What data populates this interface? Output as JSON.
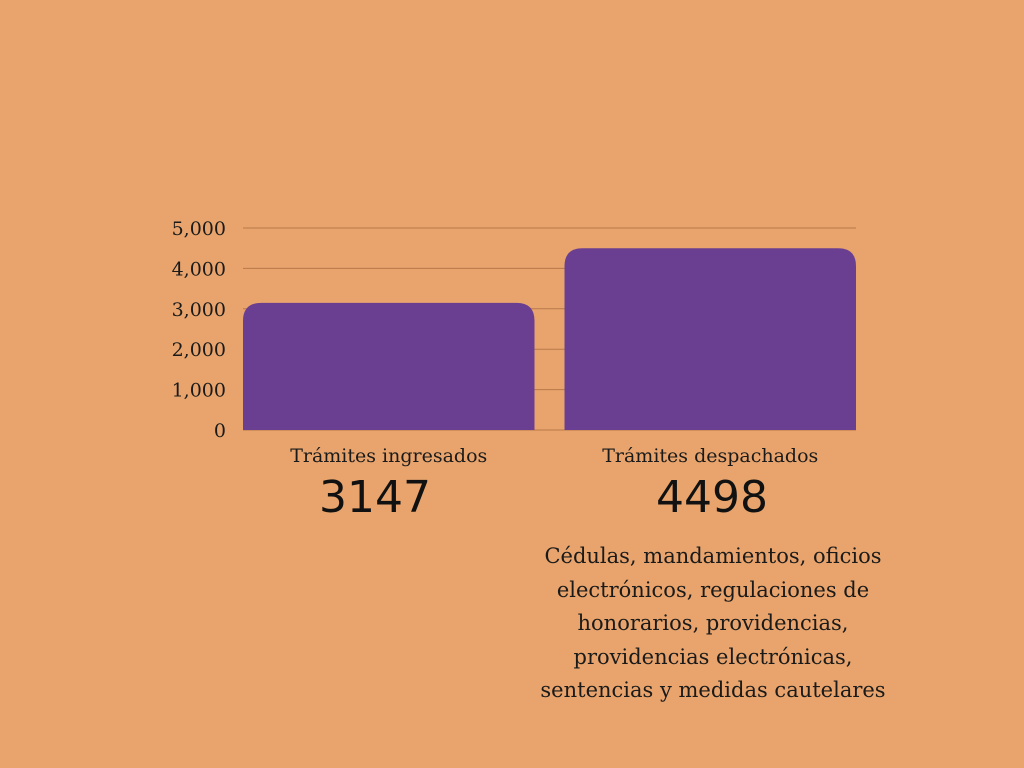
{
  "chart_data": {
    "type": "bar",
    "categories": [
      "Trámites ingresados",
      "Trámites despachados"
    ],
    "values": [
      3147,
      4498
    ],
    "ylim": [
      0,
      5000
    ],
    "yticks": [
      0,
      1000,
      2000,
      3000,
      4000,
      5000
    ],
    "ytick_labels": [
      "0",
      "1,000",
      "2,000",
      "3,000",
      "4,000",
      "5,000"
    ],
    "grid": true,
    "bar_color": "#6A3F91",
    "grid_color": "#B8784A"
  },
  "annotations": {
    "value_ingresados": "3147",
    "value_despachados": "4498",
    "note": "Cédulas, mandamientos, oficios electrónicos, regulaciones de honorarios, providencias, providencias electrónicas, sentencias y medidas cautelares"
  }
}
